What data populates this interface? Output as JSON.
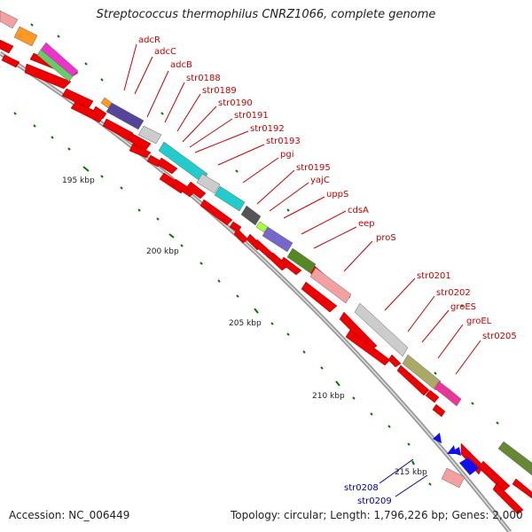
{
  "title": "Streptococcus thermophilus CNRZ1066, complete genome",
  "footer": {
    "accession": "Accession: NC_006449",
    "summary": "Topology: circular; Length: 1,796,226 bp; Genes: 2,000"
  },
  "kbp_labels": [
    "195 kbp",
    "200 kbp",
    "205 kbp",
    "210 kbp",
    "215 kbp"
  ],
  "red_gene_labels": [
    "adcR",
    "adcC",
    "adcB",
    "str0188",
    "str0189",
    "str0190",
    "str0191",
    "str0192",
    "str0193",
    "pgi",
    "str0195",
    "yajC",
    "uppS",
    "cdsA",
    "eep",
    "proS",
    "str0201",
    "str0202",
    "groES",
    "groEL",
    "str0205"
  ],
  "blue_gene_labels": [
    "str0208",
    "str0209"
  ],
  "colors": {
    "backbone": "#999999",
    "forward_gene": "#ee0000",
    "reverse_gene": "#1010ee",
    "gc_tick": "#007700",
    "red_label": "#cc0000",
    "blue_label": "#0000aa"
  }
}
